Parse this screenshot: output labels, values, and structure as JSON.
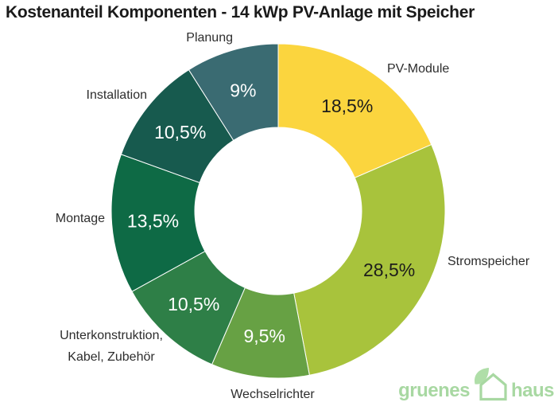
{
  "title": "Kostenanteil Komponenten - 14 kWp PV-Anlage mit Speicher",
  "chart_data": {
    "type": "pie",
    "subtype": "donut",
    "title": "Kostenanteil Komponenten - 14 kWp PV-Anlage mit Speicher",
    "unit": "%",
    "decimal_separator": ",",
    "start_angle_deg": 0,
    "direction": "clockwise",
    "legend_position": "outside-labels",
    "segments": [
      {
        "label": "PV-Module",
        "label_lines": [
          "PV-Module"
        ],
        "value": 18.5,
        "display": "18,5%",
        "color": "#FBD53E",
        "value_text_color": "#1d1d1b"
      },
      {
        "label": "Stromspeicher",
        "label_lines": [
          "Stromspeicher"
        ],
        "value": 28.5,
        "display": "28,5%",
        "color": "#A8C33C",
        "value_text_color": "#1d1d1b"
      },
      {
        "label": "Wechselrichter",
        "label_lines": [
          "Wechselrichter"
        ],
        "value": 9.5,
        "display": "9,5%",
        "color": "#67A144",
        "value_text_color": "#ffffff"
      },
      {
        "label": "Unterkonstruktion, Kabel, Zubehör",
        "label_lines": [
          "Unterkonstruktion,",
          "Kabel, Zubehör"
        ],
        "value": 10.5,
        "display": "10,5%",
        "color": "#2E7F47",
        "value_text_color": "#ffffff"
      },
      {
        "label": "Montage",
        "label_lines": [
          "Montage"
        ],
        "value": 13.5,
        "display": "13,5%",
        "color": "#0E6A45",
        "value_text_color": "#ffffff"
      },
      {
        "label": "Installation",
        "label_lines": [
          "Installation"
        ],
        "value": 10.5,
        "display": "10,5%",
        "color": "#175A4E",
        "value_text_color": "#ffffff"
      },
      {
        "label": "Planung",
        "label_lines": [
          "Planung"
        ],
        "value": 9.0,
        "display": "9%",
        "color": "#3A6B72",
        "value_text_color": "#ffffff"
      }
    ]
  },
  "logo": {
    "part1": "gruenes",
    "part2": "haus",
    "color": "#A8D8A2",
    "icon": "leaf-house-icon"
  }
}
